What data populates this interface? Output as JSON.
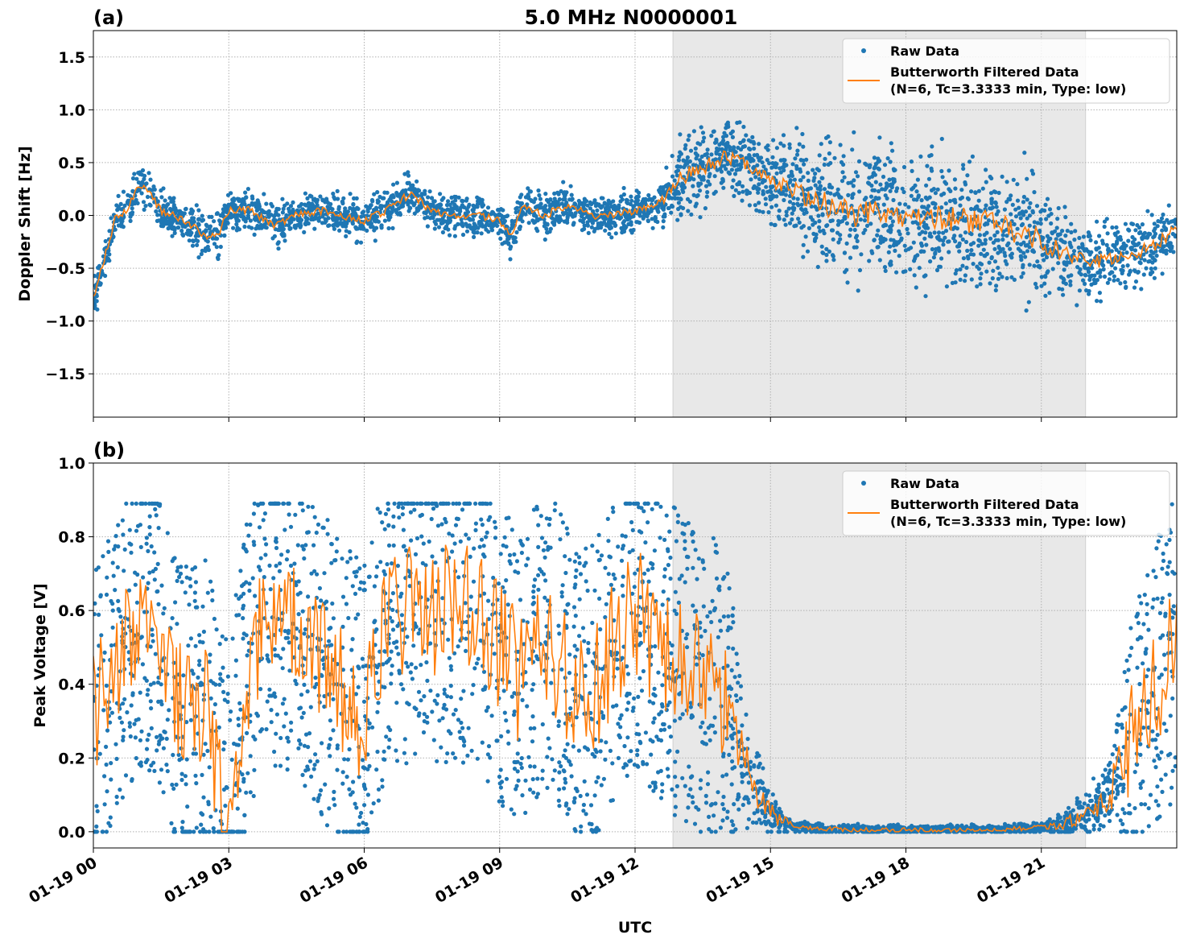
{
  "chart_data": [
    {
      "panel_label": "(a)",
      "type": "scatter",
      "title": "5.0 MHz N0000001",
      "xlabel": "UTC",
      "ylabel": "Doppler Shift [Hz]",
      "xlim_hours": [
        0,
        24
      ],
      "ylim": [
        -1.91,
        1.75
      ],
      "yticks": [
        1.5,
        1.0,
        0.5,
        0.0,
        -0.5,
        -1.0,
        -1.5
      ],
      "ytick_labels": [
        "1.5",
        "1.0",
        "0.5",
        "0.0",
        "−0.5",
        "−1.0",
        "−1.5"
      ],
      "grid": true,
      "legend_position": "top-right",
      "shaded_region_hours": [
        12.84,
        21.98
      ],
      "series": [
        {
          "name": "Raw Data",
          "color": "#1f77b4",
          "kind": "scatter",
          "spread": [
            [
              0,
              0.15
            ],
            [
              12.5,
              0.15
            ],
            [
              13,
              0.3
            ],
            [
              15,
              0.3
            ],
            [
              16,
              0.5
            ],
            [
              21,
              0.5
            ],
            [
              21.5,
              0.3
            ],
            [
              24,
              0.25
            ]
          ]
        },
        {
          "name": "Butterworth Filtered Data",
          "name_line2": "(N=6, Tc=3.3333 min, Type: low)",
          "color": "#ff7f0e",
          "kind": "line",
          "x": [
            0,
            0.25,
            0.5,
            0.75,
            1,
            1.25,
            1.5,
            2,
            2.5,
            2.75,
            3,
            3.5,
            4,
            4.5,
            5,
            5.5,
            6,
            6.5,
            7,
            7.5,
            8,
            8.5,
            9,
            9.25,
            9.5,
            10,
            10.5,
            11,
            11.5,
            12,
            12.5,
            12.75,
            13,
            13.25,
            13.5,
            14,
            14.5,
            15,
            15.5,
            16,
            16.5,
            17,
            17.5,
            18,
            18.5,
            19,
            19.5,
            20,
            20.5,
            21,
            21.5,
            22,
            22.5,
            23,
            23.5,
            24
          ],
          "y": [
            -0.8,
            -0.4,
            0.0,
            0.05,
            0.3,
            0.2,
            0.05,
            -0.05,
            -0.2,
            -0.2,
            0.05,
            0.05,
            -0.1,
            0.0,
            0.05,
            0.0,
            -0.05,
            0.05,
            0.2,
            0.05,
            0.0,
            0.0,
            -0.05,
            -0.2,
            0.1,
            0.0,
            0.1,
            0.0,
            0.0,
            0.05,
            0.1,
            0.2,
            0.35,
            0.4,
            0.45,
            0.55,
            0.5,
            0.3,
            0.25,
            0.15,
            0.05,
            0.0,
            0.05,
            -0.05,
            0.0,
            -0.05,
            -0.05,
            -0.1,
            -0.15,
            -0.25,
            -0.35,
            -0.45,
            -0.4,
            -0.35,
            -0.3,
            -0.1
          ]
        }
      ]
    },
    {
      "panel_label": "(b)",
      "type": "scatter",
      "xlabel": "UTC",
      "ylabel": "Peak Voltage [V]",
      "xlim_hours": [
        0,
        24
      ],
      "ylim": [
        -0.044,
        1.0
      ],
      "yticks": [
        1.0,
        0.8,
        0.6,
        0.4,
        0.2,
        0.0
      ],
      "ytick_labels": [
        "1.0",
        "0.8",
        "0.6",
        "0.4",
        "0.2",
        "0.0"
      ],
      "xticks_hours": [
        0,
        3,
        6,
        9,
        12,
        15,
        18,
        21
      ],
      "xtick_labels": [
        "01-19 00",
        "01-19 03",
        "01-19 06",
        "01-19 09",
        "01-19 12",
        "01-19 15",
        "01-19 18",
        "01-19 21"
      ],
      "grid": true,
      "legend_position": "top-right",
      "shaded_region_hours": [
        12.84,
        21.98
      ],
      "series": [
        {
          "name": "Raw Data",
          "color": "#1f77b4",
          "kind": "scatter",
          "spread": [
            [
              0,
              0.3
            ],
            [
              14,
              0.3
            ],
            [
              14.5,
              0.12
            ],
            [
              15,
              0.05
            ],
            [
              15.5,
              0.01
            ],
            [
              21,
              0.01
            ],
            [
              22,
              0.04
            ],
            [
              22.5,
              0.08
            ],
            [
              23,
              0.25
            ],
            [
              24,
              0.3
            ]
          ]
        },
        {
          "name": "Butterworth Filtered Data",
          "name_line2": "(N=6, Tc=3.3333 min, Type: low)",
          "color": "#ff7f0e",
          "kind": "line",
          "x": [
            0,
            0.5,
            1,
            1.5,
            2,
            2.5,
            2.75,
            3,
            3.5,
            4,
            4.5,
            5,
            5.5,
            6,
            6.5,
            7,
            7.5,
            8,
            8.5,
            9,
            9.5,
            10,
            10.5,
            11,
            11.5,
            12,
            12.5,
            13,
            13.5,
            14,
            14.5,
            15,
            15.5,
            16,
            17,
            18,
            19,
            20,
            20.5,
            21,
            21.5,
            22,
            22.5,
            23,
            23.5,
            24
          ],
          "y": [
            0.3,
            0.45,
            0.6,
            0.55,
            0.3,
            0.35,
            0.15,
            0.1,
            0.5,
            0.6,
            0.55,
            0.45,
            0.4,
            0.3,
            0.6,
            0.6,
            0.6,
            0.6,
            0.6,
            0.5,
            0.4,
            0.55,
            0.4,
            0.35,
            0.5,
            0.6,
            0.5,
            0.45,
            0.4,
            0.35,
            0.15,
            0.05,
            0.015,
            0.008,
            0.005,
            0.005,
            0.005,
            0.006,
            0.008,
            0.012,
            0.02,
            0.05,
            0.1,
            0.25,
            0.4,
            0.5
          ]
        }
      ]
    }
  ]
}
